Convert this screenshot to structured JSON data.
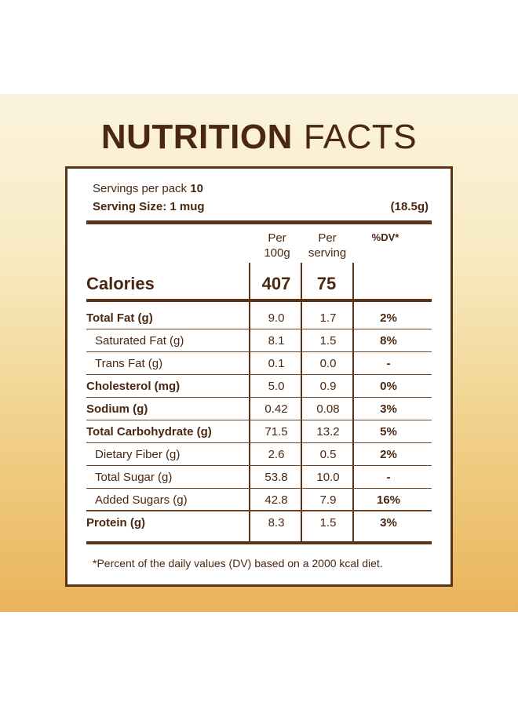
{
  "title": {
    "word1": "NUTRITION",
    "word2": "FACTS"
  },
  "serving": {
    "servings_label": "Servings per pack",
    "servings_value": "10",
    "size_label": "Serving Size: 1 mug",
    "size_grams": "(18.5g)"
  },
  "columns": {
    "per100_line1": "Per",
    "per100_line2": "100g",
    "perserv_line1": "Per",
    "perserv_line2": "serving",
    "dv": "%DV*"
  },
  "calories": {
    "label": "Calories",
    "per100": "407",
    "perserving": "75"
  },
  "rows": [
    {
      "name": "Total Fat (g)",
      "per100": "9.0",
      "perserving": "1.7",
      "dv": "2%"
    },
    {
      "name": "Saturated Fat (g)",
      "per100": "8.1",
      "perserving": "1.5",
      "dv": "8%"
    },
    {
      "name": "Trans Fat (g)",
      "per100": "0.1",
      "perserving": "0.0",
      "dv": "-"
    },
    {
      "name": "Cholesterol (mg)",
      "per100": "5.0",
      "perserving": "0.9",
      "dv": "0%"
    },
    {
      "name": "Sodium (g)",
      "per100": "0.42",
      "perserving": "0.08",
      "dv": "3%"
    },
    {
      "name": "Total Carbohydrate (g)",
      "per100": "71.5",
      "perserving": "13.2",
      "dv": "5%"
    },
    {
      "name": "Dietary Fiber (g)",
      "per100": "2.6",
      "perserving": "0.5",
      "dv": "2%"
    },
    {
      "name": "Total Sugar (g)",
      "per100": "53.8",
      "perserving": "10.0",
      "dv": "-"
    },
    {
      "name": "Added Sugars (g)",
      "per100": "42.8",
      "perserving": "7.9",
      "dv": "16%"
    },
    {
      "name": "Protein (g)",
      "per100": "8.3",
      "perserving": "1.5",
      "dv": "3%"
    }
  ],
  "footnote": "*Percent of the daily values (DV) based on a 2000 kcal diet."
}
